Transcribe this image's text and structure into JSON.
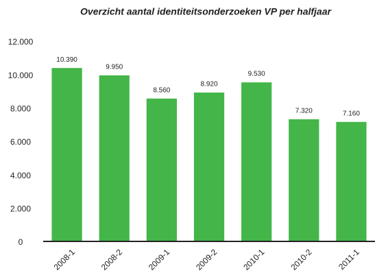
{
  "chart_data": {
    "type": "bar",
    "title": "Overzicht aantal identiteitsonderzoeken VP per halfjaar",
    "categories": [
      "2008-1",
      "2008-2",
      "2009-1",
      "2009-2",
      "2010-1",
      "2010-2",
      "2011-1"
    ],
    "values": [
      10390,
      9950,
      8560,
      8920,
      9530,
      7320,
      7160
    ],
    "value_labels": [
      "10.390",
      "9.950",
      "8.560",
      "8.920",
      "9.530",
      "7.320",
      "7.160"
    ],
    "color": "#44b649",
    "ylim": [
      0,
      12000
    ],
    "yticks": [
      0,
      {
        "value": 2000,
        "label": "2.000"
      },
      {
        "value": 4000,
        "label": "4.000"
      },
      {
        "value": 6000,
        "label": "6.000"
      },
      {
        "value": 8000,
        "label": "8.000"
      },
      {
        "value": 10000,
        "label": "10.000"
      },
      {
        "value": 12000,
        "label": "12.000"
      }
    ],
    "grid": false
  }
}
